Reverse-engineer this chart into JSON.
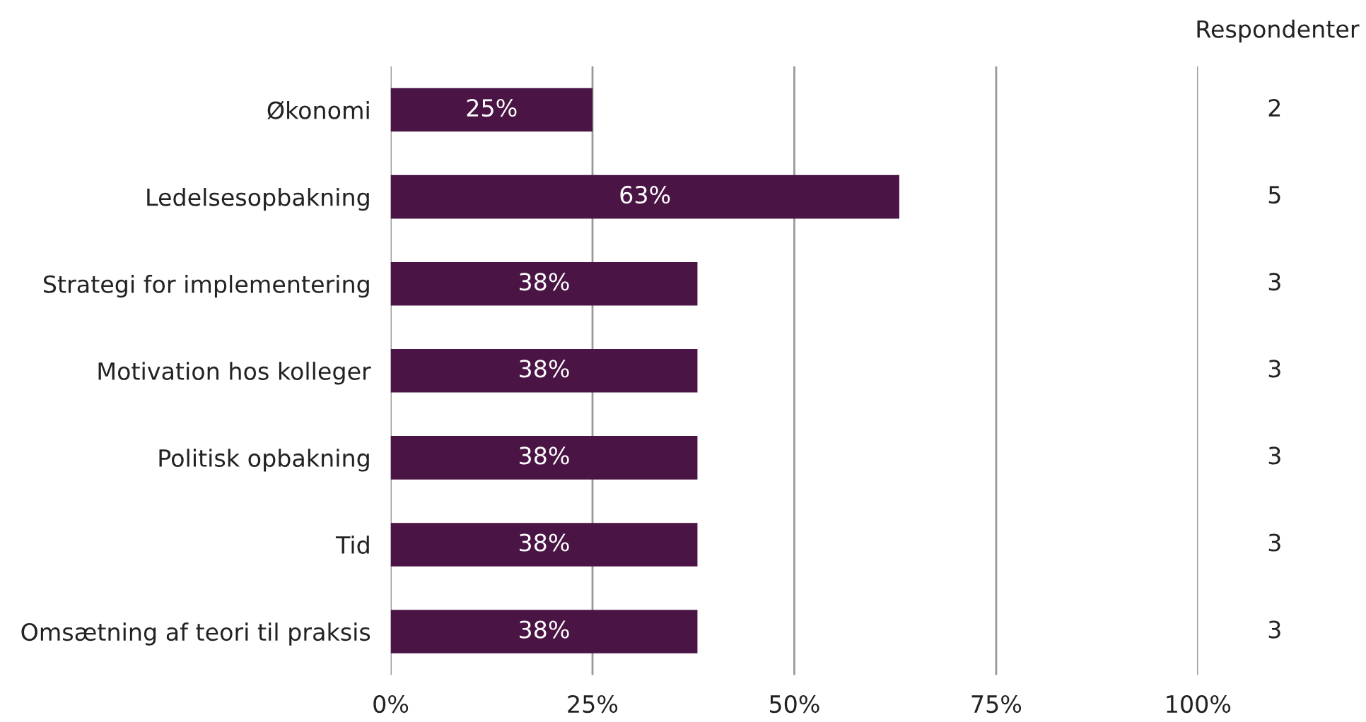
{
  "chart_data": {
    "type": "bar",
    "orientation": "horizontal",
    "categories": [
      "Økonomi",
      "Ledelsesopbakning",
      "Strategi for implementering",
      "Motivation hos kolleger",
      "Politisk opbakning",
      "Tid",
      "Omsætning af teori til praksis"
    ],
    "values": [
      25,
      63,
      38,
      38,
      38,
      38,
      38
    ],
    "color": "#4a1445",
    "value_labels": [
      "25%",
      "63%",
      "38%",
      "38%",
      "38%",
      "38%",
      "38%"
    ],
    "xlim": [
      0,
      100
    ],
    "xticks": [
      {
        "value": 0,
        "label": "0%"
      },
      {
        "value": 25,
        "label": "25%"
      },
      {
        "value": 50,
        "label": "50%"
      },
      {
        "value": 75,
        "label": "75%"
      },
      {
        "value": 100,
        "label": "100%"
      }
    ],
    "grid": "x",
    "annotations": [
      "Respondenter",
      "2",
      "5",
      "3",
      "3",
      "3",
      "3",
      "3"
    ]
  }
}
